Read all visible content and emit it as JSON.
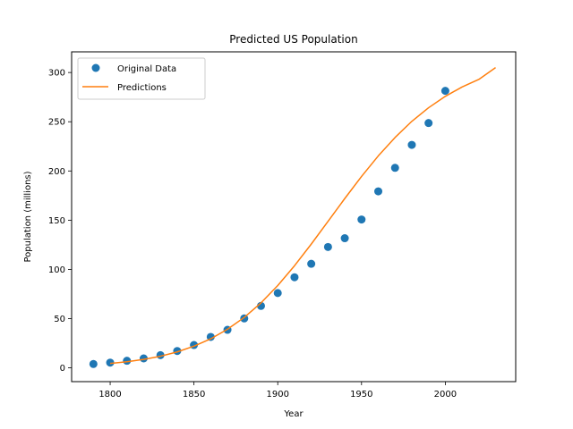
{
  "chart_data": {
    "type": "scatter",
    "title": "Predicted US Population",
    "xlabel": "Year",
    "ylabel": "Population (millions)",
    "xlim": [
      1777,
      2042
    ],
    "ylim": [
      -14,
      321
    ],
    "xticks": [
      1800,
      1850,
      1900,
      1950,
      2000
    ],
    "yticks": [
      0,
      50,
      100,
      150,
      200,
      250,
      300
    ],
    "grid": false,
    "legend_position": "top-left",
    "series": [
      {
        "name": "Original Data",
        "kind": "points",
        "color": "#1f77b4",
        "x": [
          1790,
          1800,
          1810,
          1820,
          1830,
          1840,
          1850,
          1860,
          1870,
          1880,
          1890,
          1900,
          1910,
          1920,
          1930,
          1940,
          1950,
          1960,
          1970,
          1980,
          1990,
          2000
        ],
        "y": [
          3.9,
          5.3,
          7.2,
          9.6,
          12.9,
          17.1,
          23.2,
          31.4,
          38.6,
          50.2,
          62.9,
          76.0,
          92.0,
          105.7,
          122.8,
          131.7,
          150.7,
          179.3,
          203.2,
          226.5,
          248.7,
          281.4
        ]
      },
      {
        "name": "Predictions",
        "kind": "line",
        "color": "#ff7f0e",
        "x": [
          1800,
          1810,
          1820,
          1830,
          1840,
          1850,
          1860,
          1870,
          1880,
          1890,
          1900,
          1910,
          1920,
          1930,
          1940,
          1950,
          1960,
          1970,
          1980,
          1990,
          2000,
          2010,
          2020,
          2030
        ],
        "y": [
          4.5,
          6.2,
          8.6,
          11.8,
          16.2,
          22.0,
          29.5,
          39.2,
          51.2,
          66.0,
          83.6,
          103.7,
          125.7,
          148.8,
          172.0,
          194.4,
          215.3,
          234.0,
          250.4,
          264.2,
          275.8,
          285.3,
          293.0,
          305.0
        ]
      }
    ]
  }
}
